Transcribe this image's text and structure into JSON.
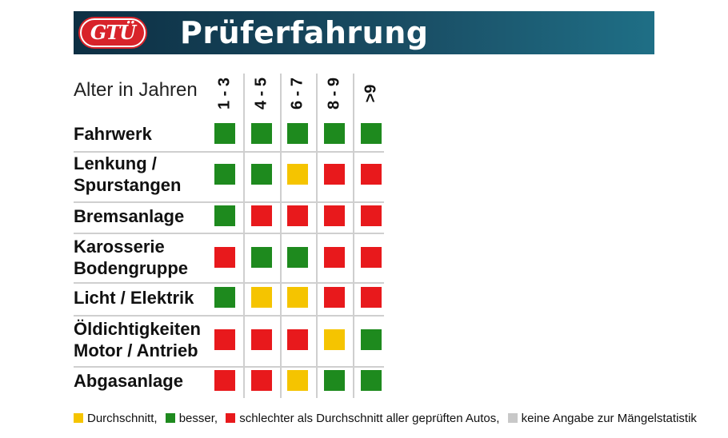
{
  "header": {
    "logo_text": "GTÜ",
    "title": "Prüferfahrung"
  },
  "chart_data": {
    "type": "table",
    "corner_label": "Alter in Jahren",
    "columns": [
      "1 - 3",
      "4 - 5",
      "6 - 7",
      "8 - 9",
      ">9"
    ],
    "rows": [
      {
        "label": [
          "Fahrwerk"
        ],
        "values": [
          "besser",
          "besser",
          "besser",
          "besser",
          "besser"
        ]
      },
      {
        "label": [
          "Lenkung /",
          "Spurstangen"
        ],
        "values": [
          "besser",
          "besser",
          "Durchschnitt",
          "schlechter",
          "schlechter"
        ]
      },
      {
        "label": [
          "Bremsanlage"
        ],
        "values": [
          "besser",
          "schlechter",
          "schlechter",
          "schlechter",
          "schlechter"
        ]
      },
      {
        "label": [
          "Karosserie",
          "Bodengruppe"
        ],
        "values": [
          "schlechter",
          "besser",
          "besser",
          "schlechter",
          "schlechter"
        ]
      },
      {
        "label": [
          "Licht / Elektrik"
        ],
        "values": [
          "besser",
          "Durchschnitt",
          "Durchschnitt",
          "schlechter",
          "schlechter"
        ]
      },
      {
        "label": [
          "Öldichtigkeiten",
          "Motor / Antrieb"
        ],
        "values": [
          "schlechter",
          "schlechter",
          "schlechter",
          "Durchschnitt",
          "besser"
        ]
      },
      {
        "label": [
          "Abgasanlage"
        ],
        "values": [
          "schlechter",
          "schlechter",
          "Durchschnitt",
          "besser",
          "besser"
        ]
      }
    ],
    "colors": {
      "Durchschnitt": "#f5c400",
      "besser": "#1e8a1e",
      "schlechter": "#e8191c",
      "keine Angabe": "#c8c8c8"
    },
    "legend": [
      {
        "key": "Durchschnitt",
        "text": "Durchschnitt,"
      },
      {
        "key": "besser",
        "text": "besser,"
      },
      {
        "key": "schlechter",
        "text": "schlechter als Durchschnitt aller geprüften Autos,"
      },
      {
        "key": "keine Angabe",
        "text": "keine Angabe zur Mängelstatistik"
      }
    ]
  }
}
